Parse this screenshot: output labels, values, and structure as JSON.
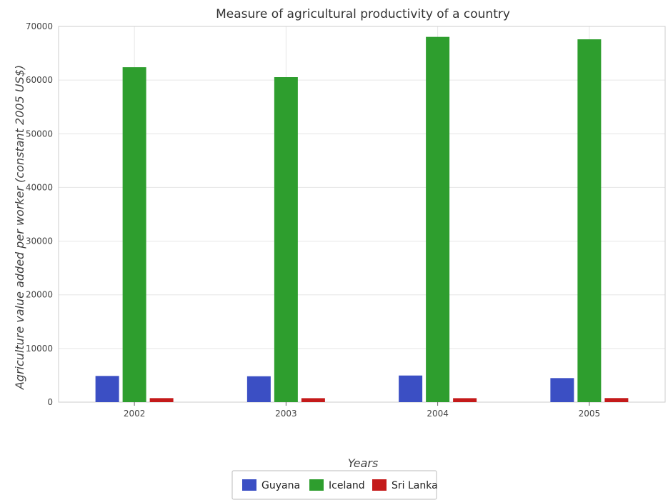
{
  "chart_data": {
    "type": "bar",
    "title": "Measure of agricultural productivity of a country",
    "xlabel": "Years",
    "ylabel": "Agriculture value added per worker (constant 2005 US$)",
    "categories": [
      "2002",
      "2003",
      "2004",
      "2005"
    ],
    "series": [
      {
        "name": "Guyana",
        "color": "#3b4fc4",
        "values": [
          4880,
          4820,
          4960,
          4480
        ]
      },
      {
        "name": "Iceland",
        "color": "#2e9e2e",
        "values": [
          62400,
          60550,
          68050,
          67600
        ]
      },
      {
        "name": "Sri Lanka",
        "color": "#c41a1a",
        "values": [
          750,
          740,
          740,
          760
        ]
      }
    ],
    "ylim": [
      0,
      70000
    ],
    "yticks": [
      0,
      10000,
      20000,
      30000,
      40000,
      50000,
      60000,
      70000
    ],
    "ytick_labels": [
      "0",
      "10000",
      "20000",
      "30000",
      "40000",
      "50000",
      "60000",
      "70000"
    ],
    "grid": true,
    "legend_position": "bottom-center"
  }
}
